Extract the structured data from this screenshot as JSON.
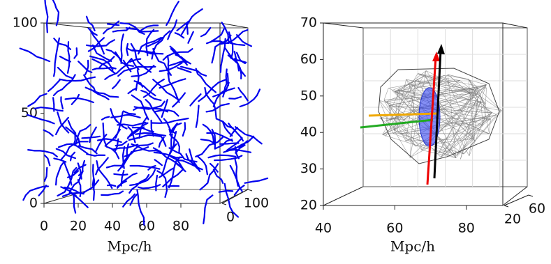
{
  "chart_data": [
    {
      "type": "filaments3d",
      "xlabel": "Mpc/h",
      "color": "#0000ee",
      "xlim": [
        0,
        100
      ],
      "ylim": [
        0,
        100
      ],
      "zlim": [
        0,
        100
      ],
      "xticks": [
        0,
        20,
        40,
        60,
        80
      ],
      "yticks": [
        0,
        50,
        100
      ],
      "zticks": [
        0,
        100
      ]
    },
    {
      "type": "mesh3d",
      "xlabel": "Mpc/h",
      "xlim": [
        40,
        90
      ],
      "ylim": [
        20,
        70
      ],
      "zlim": [
        20,
        60
      ],
      "xticks": [
        40,
        60,
        80
      ],
      "yticks": [
        20,
        30,
        40,
        50,
        60,
        70
      ],
      "zticks": [
        20,
        60
      ]
    }
  ]
}
